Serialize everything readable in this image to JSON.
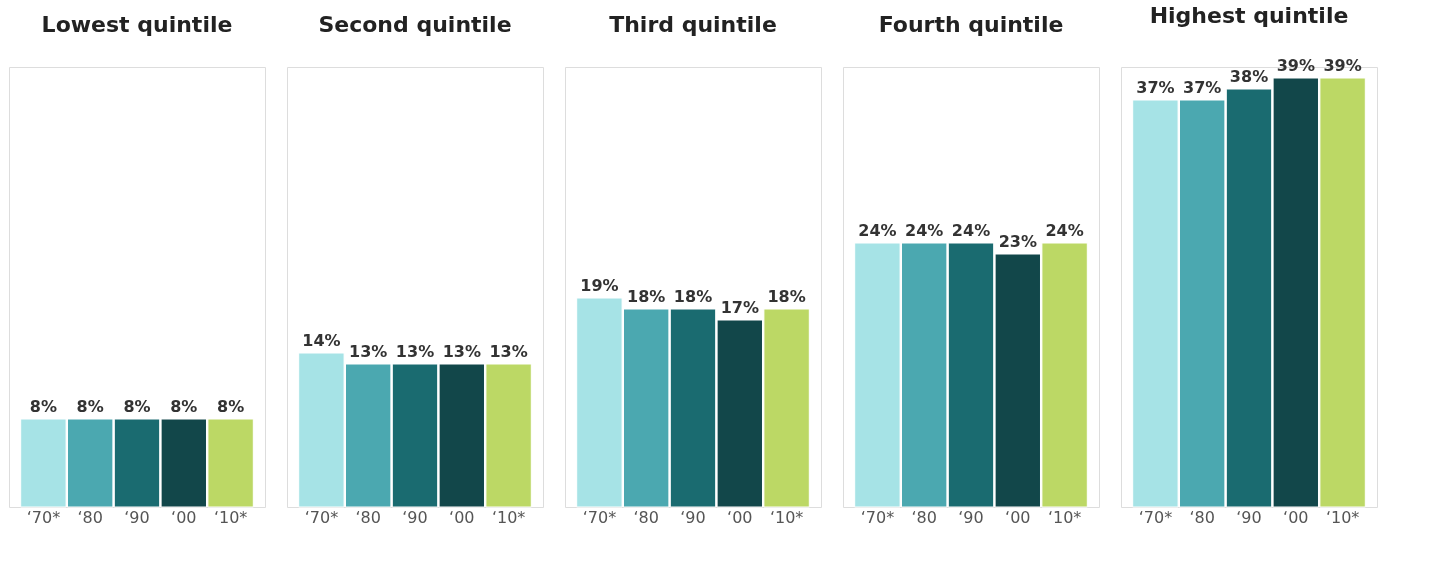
{
  "chart_data": [
    {
      "type": "bar",
      "title": "Lowest quintile",
      "categories": [
        "‘70*",
        "‘80",
        "‘90",
        "‘00",
        "‘10*"
      ],
      "values": [
        8,
        8,
        8,
        8,
        8
      ],
      "value_labels": [
        "8%",
        "8%",
        "8%",
        "8%",
        "8%"
      ],
      "colors": [
        "#a6e3e6",
        "#4ba8b0",
        "#1a6b70",
        "#12474a",
        "#bcd865"
      ],
      "tick_labels": "x"
    },
    {
      "type": "bar",
      "title": "Second quintile",
      "categories": [
        "‘70*",
        "‘80",
        "‘90",
        "‘00",
        "‘10*"
      ],
      "values": [
        14,
        13,
        13,
        13,
        13
      ],
      "value_labels": [
        "14%",
        "13%",
        "13%",
        "13%",
        "13%"
      ],
      "colors": [
        "#a6e3e6",
        "#4ba8b0",
        "#1a6b70",
        "#12474a",
        "#bcd865"
      ],
      "tick_labels": "x"
    },
    {
      "type": "bar",
      "title": "Third quintile",
      "categories": [
        "‘70*",
        "‘80",
        "‘90",
        "‘00",
        "‘10*"
      ],
      "values": [
        19,
        18,
        18,
        17,
        18
      ],
      "value_labels": [
        "19%",
        "18%",
        "18%",
        "17%",
        "18%"
      ],
      "colors": [
        "#a6e3e6",
        "#4ba8b0",
        "#1a6b70",
        "#12474a",
        "#bcd865"
      ],
      "tick_labels": "x"
    },
    {
      "type": "bar",
      "title": "Fourth quintile",
      "categories": [
        "‘70*",
        "‘80",
        "‘90",
        "‘00",
        "‘10*"
      ],
      "values": [
        24,
        24,
        24,
        23,
        24
      ],
      "value_labels": [
        "24%",
        "24%",
        "24%",
        "23%",
        "24%"
      ],
      "colors": [
        "#a6e3e6",
        "#4ba8b0",
        "#1a6b70",
        "#12474a",
        "#bcd865"
      ],
      "tick_labels": "x"
    },
    {
      "type": "bar",
      "title": "Highest quintile",
      "categories": [
        "‘70*",
        "‘80",
        "‘90",
        "‘00",
        "‘10*"
      ],
      "values": [
        37,
        37,
        38,
        39,
        39
      ],
      "value_labels": [
        "37%",
        "37%",
        "38%",
        "39%",
        "39%"
      ],
      "colors": [
        "#a6e3e6",
        "#4ba8b0",
        "#1a6b70",
        "#12474a",
        "#bcd865"
      ],
      "tick_labels": "x"
    }
  ]
}
